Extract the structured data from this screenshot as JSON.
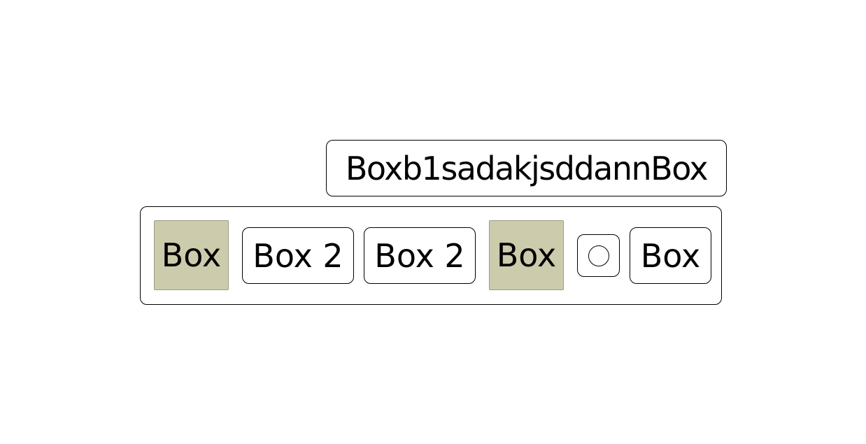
{
  "top_box": {
    "label": "Boxb1sadakjsddannBox"
  },
  "container": {
    "items": [
      {
        "label": "Box"
      },
      {
        "label": "Box 2"
      },
      {
        "label": "Box 2"
      },
      {
        "label": "Box"
      },
      {
        "label": ""
      },
      {
        "label": "Box"
      }
    ]
  },
  "colors": {
    "shaded_fill": "#cccbac",
    "border": "#000000"
  }
}
